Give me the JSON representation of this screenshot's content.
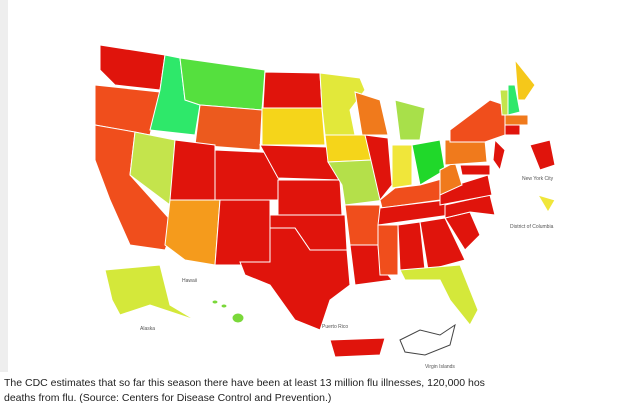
{
  "map": {
    "labels": {
      "new_york_city": "New York City",
      "district_of_columbia": "District of Columbia",
      "hawaii": "Hawaii",
      "alaska": "Alaska",
      "puerto_rico": "Puerto Rico",
      "virgin_islands": "Virgin Islands"
    }
  },
  "caption": {
    "line1": "The CDC estimates that so far this season there have been at least 13 million flu illnesses, 120,000 hos",
    "line2": "deaths from flu. (Source: Centers for Disease Control and Prevention.)"
  }
}
